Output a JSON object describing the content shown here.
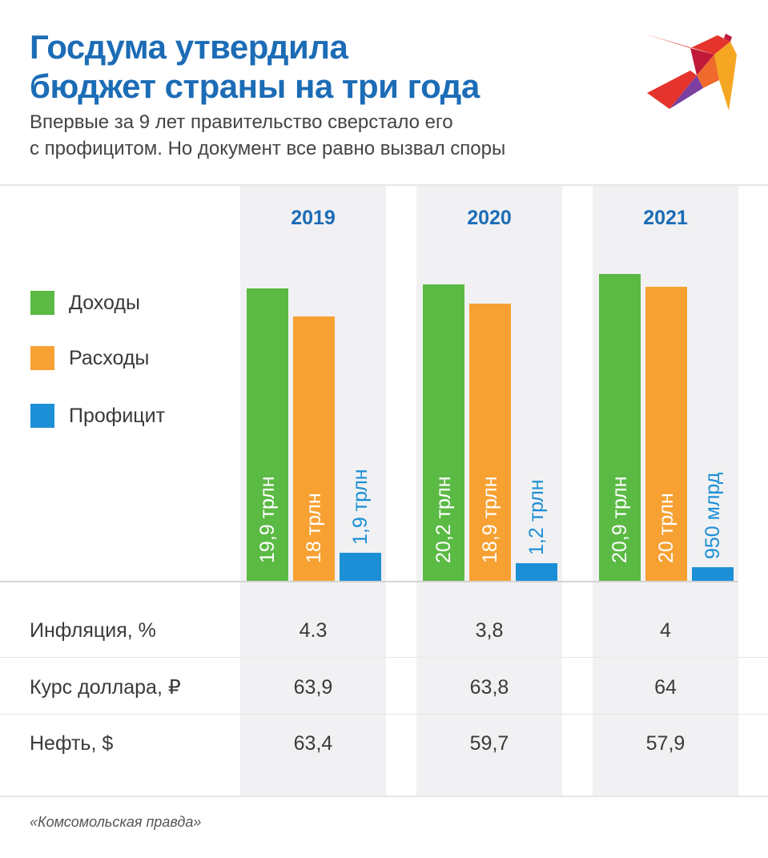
{
  "title_lines": [
    "Госдума утвердила",
    "бюджет страны на три года"
  ],
  "subtitle_lines": [
    "Впервые за 9 лет правительство сверстало его",
    "с профицитом. Но документ все равно вызвал споры"
  ],
  "logo": {
    "icon": "kp-swallow-logo-icon",
    "colors": [
      "#e4342d",
      "#f5a623",
      "#7b3fa0",
      "#c0193a"
    ]
  },
  "chart_data": {
    "type": "bar",
    "title": "Госдума утвердила бюджет страны на три года",
    "categories": [
      "2019",
      "2020",
      "2021"
    ],
    "series": [
      {
        "name": "Доходы",
        "color": "#5bba44",
        "values": [
          19.9,
          20.2,
          20.9
        ],
        "labels": [
          "19,9 трлн",
          "20,2 трлн",
          "20,9 трлн"
        ],
        "label_color": "#ffffff"
      },
      {
        "name": "Расходы",
        "color": "#f7a133",
        "values": [
          18,
          18.9,
          20
        ],
        "labels": [
          "18 трлн",
          "18,9 трлн",
          "20 трлн"
        ],
        "label_color": "#ffffff"
      },
      {
        "name": "Профицит",
        "color": "#1d8fd6",
        "values": [
          1.9,
          1.2,
          0.95
        ],
        "labels": [
          "1,9 трлн",
          "1,2 трлн",
          "950 млрд"
        ],
        "label_color": "#1d8fd6"
      }
    ],
    "legend_position": "left"
  },
  "table": {
    "rows": [
      {
        "label": "Инфляция, %",
        "values": [
          "4.3",
          "3,8",
          "4"
        ]
      },
      {
        "label": "Курс доллара, ₽",
        "values": [
          "63,9",
          "63,8",
          "64"
        ]
      },
      {
        "label": "Нефть, $",
        "values": [
          "63,4",
          "59,7",
          "57,9"
        ]
      }
    ]
  },
  "source": "«Комсомольская правда»"
}
